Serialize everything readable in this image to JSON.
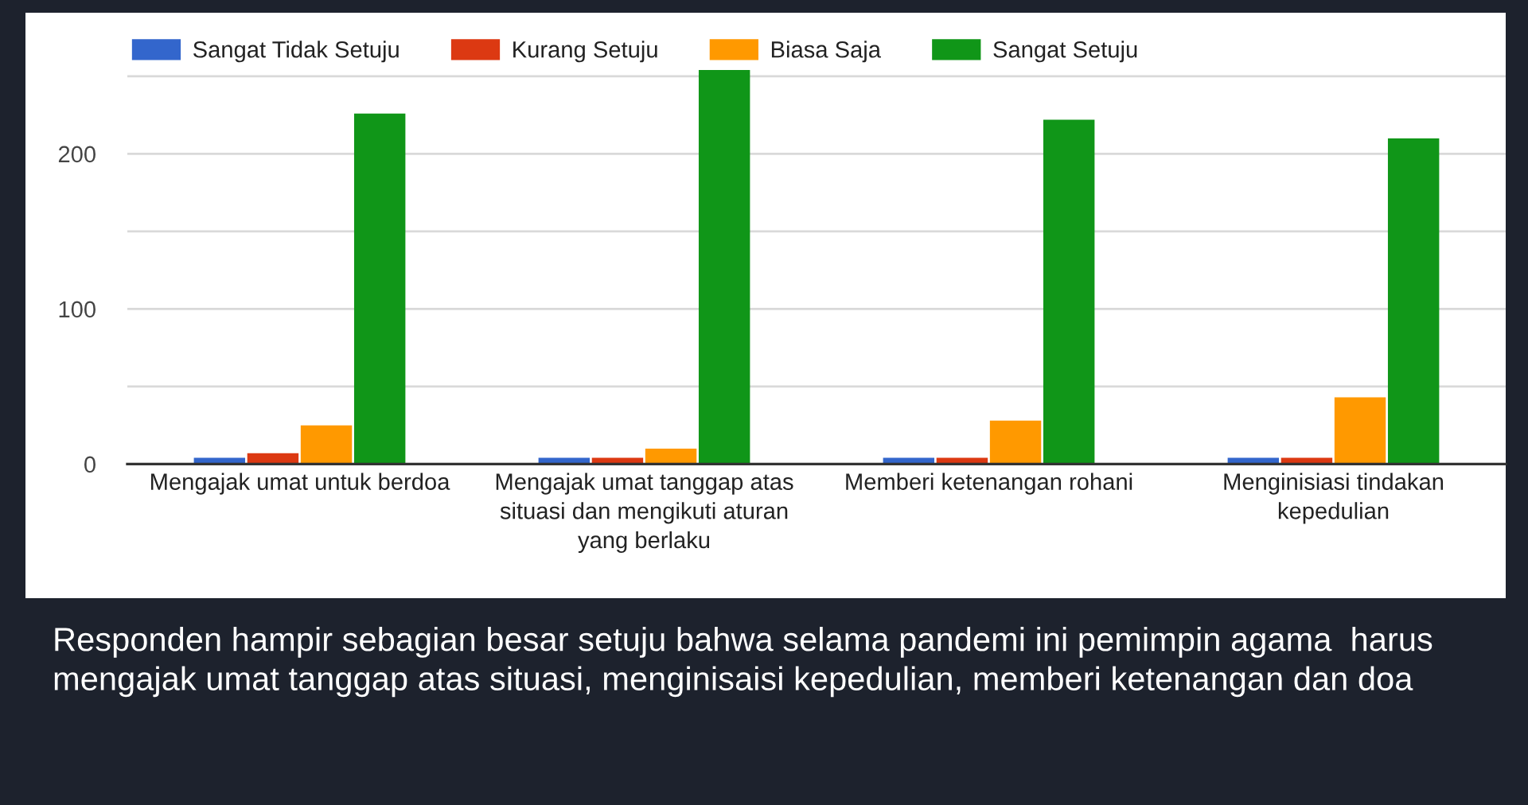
{
  "chart_data": {
    "type": "bar",
    "categories": [
      "Mengajak umat untuk berdoa",
      "Mengajak umat tanggap atas situasi dan mengikuti aturan yang berlaku",
      "Memberi ketenangan rohani",
      "Menginisiasi tindakan kepedulian"
    ],
    "series": [
      {
        "name": "Sangat Tidak Setuju",
        "color": "#3366cc",
        "values": [
          4,
          4,
          4,
          4
        ]
      },
      {
        "name": "Kurang Setuju",
        "color": "#dc3912",
        "values": [
          7,
          4,
          4,
          4
        ]
      },
      {
        "name": "Biasa Saja",
        "color": "#ff9900",
        "values": [
          25,
          10,
          28,
          43
        ]
      },
      {
        "name": "Sangat Setuju",
        "color": "#109618",
        "values": [
          226,
          254,
          222,
          210
        ]
      }
    ],
    "ylim": [
      0,
      256
    ],
    "yticks": [
      0,
      {
        "value": 50,
        "label": null
      },
      100,
      {
        "value": 150,
        "label": null
      },
      200,
      {
        "value": 250,
        "label": null
      }
    ],
    "grid": "y",
    "legend": "top",
    "annotations": [
      "Responden hampir sebagian besar setuju bahwa selama pandemi ini pemimpin agama  harus mengajak umat tanggap atas situasi, menginisaisi kepedulian, memberi ketenangan dan doa"
    ]
  }
}
